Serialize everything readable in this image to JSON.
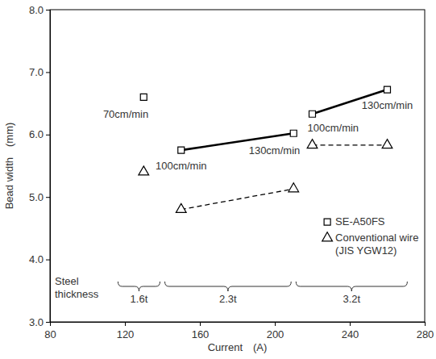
{
  "chart_data": {
    "type": "scatter",
    "x_label": "Current　(A)",
    "y_label": "Bead width　(mm)",
    "xlim": [
      80,
      280
    ],
    "xticks": [
      80,
      120,
      160,
      200,
      240,
      280
    ],
    "ylim": [
      3,
      8
    ],
    "yticks": [
      {
        "value": 3,
        "label": "3.0"
      },
      {
        "value": 4,
        "label": "4.0"
      },
      {
        "value": 5,
        "label": "5.0"
      },
      {
        "value": 6,
        "label": "6.0"
      },
      {
        "value": 7,
        "label": "7.0"
      },
      {
        "value": 8,
        "label": "8.0"
      }
    ],
    "legend": "bottom right",
    "series": [
      {
        "name": "SE-A50FS",
        "color": "#000000",
        "marker": "square",
        "line_style": "solid",
        "x": [
          130,
          null,
          150,
          210,
          null,
          220,
          260
        ],
        "values": [
          6.6,
          null,
          5.75,
          6.02,
          null,
          6.33,
          6.72
        ]
      },
      {
        "name": "Conventional wire (JIS YGW12)",
        "color": "#000000",
        "marker": "triangle",
        "line_style": "dashed",
        "x": [
          130,
          null,
          150,
          210,
          null,
          220,
          260
        ],
        "values": [
          5.4,
          null,
          4.8,
          5.13,
          null,
          5.83,
          5.83
        ]
      }
    ],
    "annotations": [
      {
        "text": "70cm/min",
        "x": 130,
        "y": 6.6
      },
      {
        "text": "100cm/min",
        "x": 150,
        "y": 5.75
      },
      {
        "text": "130cm/min",
        "x": 210,
        "y": 6.02
      },
      {
        "text": "100cm/min",
        "x": 220,
        "y": 6.33
      },
      {
        "text": "130cm/min",
        "x": 260,
        "y": 6.72
      }
    ],
    "group_title": "Steel thickness",
    "groups": [
      {
        "label": "1.6t",
        "range": [
          115,
          140
        ]
      },
      {
        "label": "2.3t",
        "range": [
          140,
          210
        ]
      },
      {
        "label": "3.2t",
        "range": [
          210,
          272
        ]
      }
    ]
  }
}
